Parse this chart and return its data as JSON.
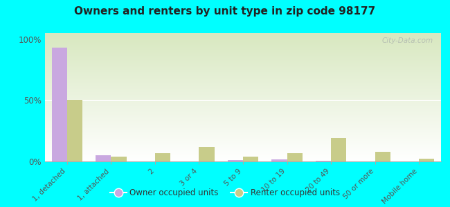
{
  "title": "Owners and renters by unit type in zip code 98177",
  "categories": [
    "1, detached",
    "1, attached",
    "2",
    "3 or 4",
    "5 to 9",
    "10 to 19",
    "20 to 49",
    "50 or more",
    "Mobile home"
  ],
  "owner_values": [
    93,
    5,
    0,
    0,
    1,
    1.5,
    0.5,
    0,
    0
  ],
  "renter_values": [
    50,
    4,
    7,
    12,
    4,
    7,
    19,
    8,
    2
  ],
  "owner_color": "#c9a8e0",
  "renter_color": "#c8cc8a",
  "background_color": "#00ffff",
  "yticks": [
    0,
    50,
    100
  ],
  "ytick_labels": [
    "0%",
    "50%",
    "100%"
  ],
  "watermark": "City-Data.com",
  "legend_owner": "Owner occupied units",
  "legend_renter": "Renter occupied units",
  "plot_bg_grad_top": "#ffffff",
  "plot_bg_grad_bottom": "#d8e8c0"
}
